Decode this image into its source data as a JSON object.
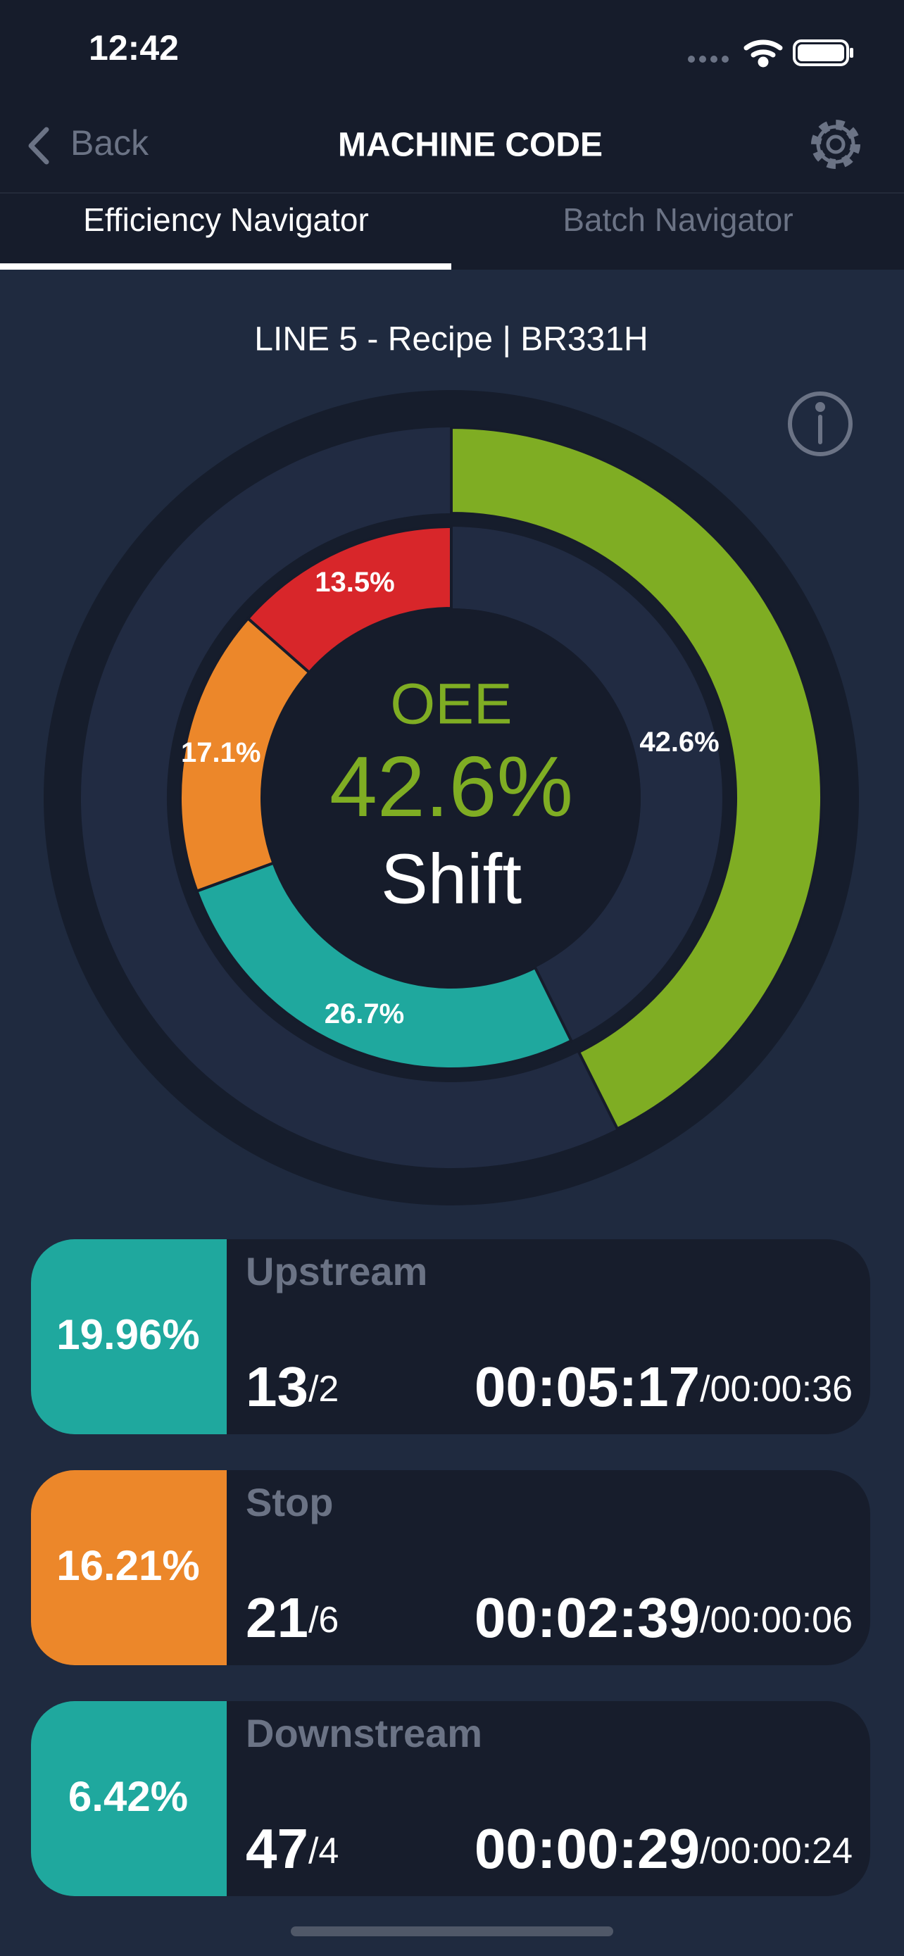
{
  "status_bar": {
    "time": "12:42"
  },
  "nav": {
    "back": "Back",
    "title": "MACHINE CODE"
  },
  "tabs": [
    "Efficiency Navigator",
    "Batch Navigator"
  ],
  "chart_data": {
    "type": "donut",
    "title": "LINE 5 - Recipe | BR331H",
    "center": {
      "label": "OEE",
      "value": "42.6%",
      "period": "Shift"
    },
    "series": [
      {
        "direction": "clockwise",
        "values": [
          42.6
        ],
        "value_labels": [
          "42.6%"
        ],
        "colors": [
          "#7fad23"
        ]
      },
      {
        "direction": "counterclockwise",
        "values": [
          13.5,
          17.1,
          26.7
        ],
        "value_labels": [
          "13.5%",
          "17.1%",
          "26.7%"
        ],
        "colors": [
          "#d8262a",
          "#ec872a",
          "#1fa89e"
        ]
      }
    ]
  },
  "cards": [
    {
      "percent": "19.96%",
      "color": "#1fa89e",
      "name": "Upstream",
      "count": "13",
      "count_sub": "/2",
      "time": "00:05:17",
      "time_sub": "/00:00:36"
    },
    {
      "percent": "16.21%",
      "color": "#ec872a",
      "name": "Stop",
      "count": "21",
      "count_sub": "/6",
      "time": "00:02:39",
      "time_sub": "/00:00:06"
    },
    {
      "percent": "6.42%",
      "color": "#1fa89e",
      "name": "Downstream",
      "count": "47",
      "count_sub": "/4",
      "time": "00:00:29",
      "time_sub": "/00:00:24"
    }
  ]
}
